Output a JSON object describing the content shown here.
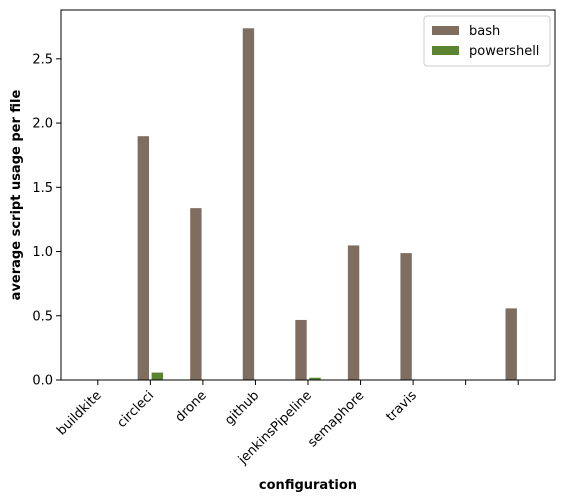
{
  "chart_data": {
    "type": "bar",
    "categories": [
      "buildkite",
      "circleci",
      "drone",
      "github",
      "jenkinsPipeline",
      "semaphore",
      "travis",
      "",
      ""
    ],
    "series": [
      {
        "name": "bash",
        "color": "#7f6e5f",
        "values": [
          0,
          1.9,
          1.34,
          2.74,
          0.47,
          1.05,
          0.99,
          0,
          0.56
        ]
      },
      {
        "name": "powershell",
        "color": "#5a8432",
        "values": [
          0,
          0.06,
          0,
          0,
          0.02,
          0,
          0,
          0,
          0
        ]
      }
    ],
    "xlabel": "configuration",
    "ylabel": "average script usage per file",
    "ylim": [
      0,
      2.88
    ],
    "yticks": [
      0.0,
      0.5,
      1.0,
      1.5,
      2.0,
      2.5
    ],
    "ytick_labels": [
      "0.0",
      "0.5",
      "1.0",
      "1.5",
      "2.0",
      "2.5"
    ],
    "grid": false,
    "legend": "top-right"
  }
}
